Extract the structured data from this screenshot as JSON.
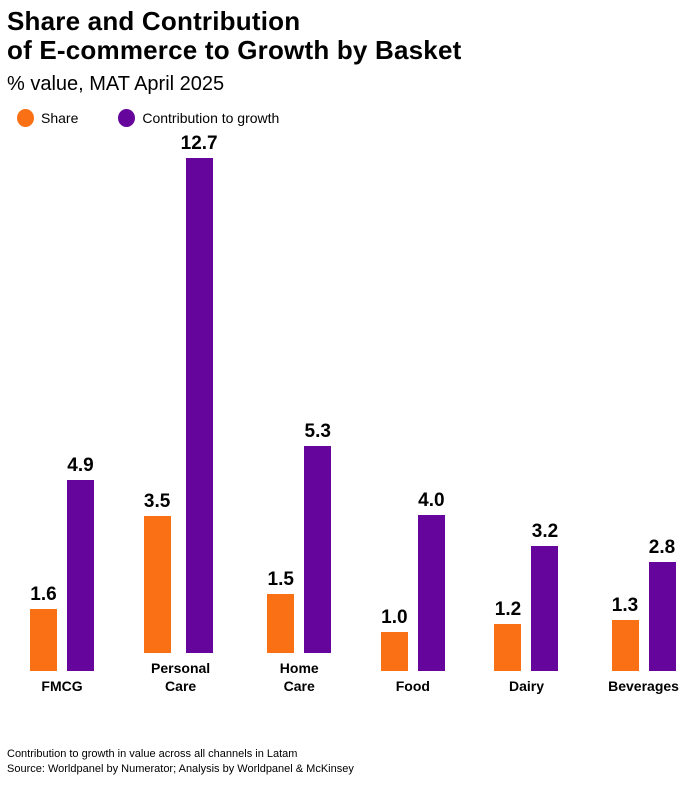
{
  "header": {
    "title_line1": "Share and Contribution",
    "title_line2": "of E-commerce to Growth by Basket",
    "subtitle": "% value, MAT April 2025"
  },
  "legend": [
    {
      "label": "Share",
      "color": "#FA7014"
    },
    {
      "label": "Contribution to growth",
      "color": "#66059B"
    }
  ],
  "chart_data": {
    "type": "bar",
    "title": "Share and Contribution of E-commerce to Growth by Basket",
    "subtitle": "% value, MAT April 2025",
    "categories": [
      "FMCG",
      "Personal\nCare",
      "Home\nCare",
      "Food",
      "Dairy",
      "Beverages"
    ],
    "series": [
      {
        "name": "Share",
        "color": "#FA7014",
        "values": [
          1.6,
          3.5,
          1.5,
          1.0,
          1.2,
          1.3
        ]
      },
      {
        "name": "Contribution to growth",
        "color": "#66059B",
        "values": [
          4.9,
          12.7,
          5.3,
          4.0,
          3.2,
          2.8
        ]
      }
    ],
    "value_labels": true,
    "value_label_decimals": 1,
    "ylim": [
      0,
      13
    ],
    "grid": false,
    "axes_visible": false,
    "legend_position": "top-left"
  },
  "footer": {
    "note": "Contribution to growth in value across all channels in Latam",
    "source": "Source: Worldpanel by Numerator; Analysis by Worldpanel & McKinsey"
  }
}
